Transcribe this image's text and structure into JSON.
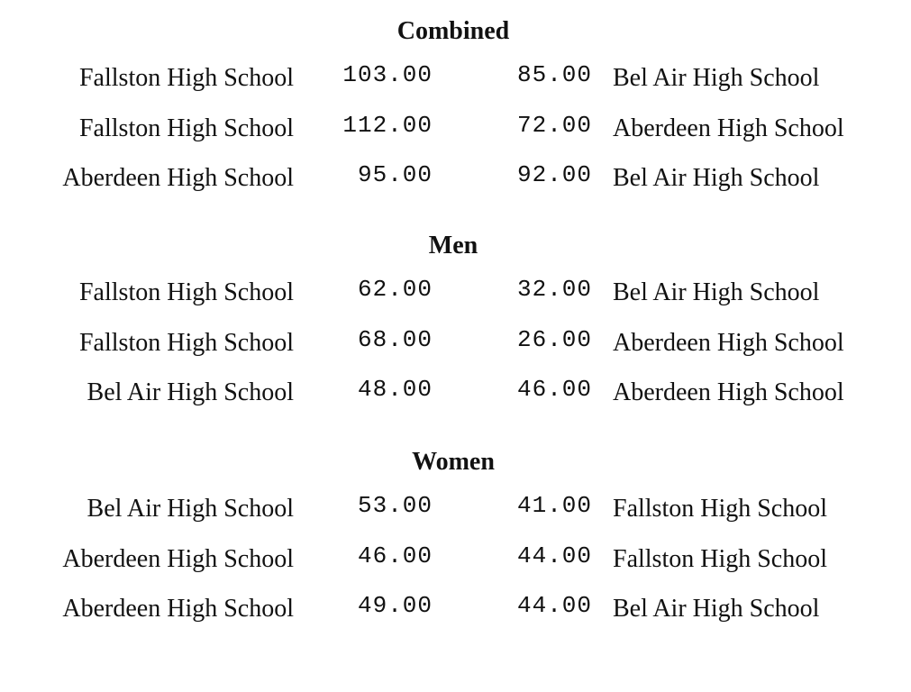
{
  "sections": [
    {
      "title": "Combined",
      "rows": [
        [
          "Fallston High School",
          "103.00",
          "85.00",
          "Bel Air High School"
        ],
        [
          "Fallston High School",
          "112.00",
          "72.00",
          "Aberdeen High School"
        ],
        [
          "Aberdeen High School",
          "95.00",
          "92.00",
          "Bel Air High School"
        ]
      ]
    },
    {
      "title": "Men",
      "rows": [
        [
          "Fallston High School",
          "62.00",
          "32.00",
          "Bel Air High School"
        ],
        [
          "Fallston High School",
          "68.00",
          "26.00",
          "Aberdeen High School"
        ],
        [
          "Bel Air High School",
          "48.00",
          "46.00",
          "Aberdeen High School"
        ]
      ]
    },
    {
      "title": "Women",
      "rows": [
        [
          "Bel Air High School",
          "53.00",
          "41.00",
          "Fallston High School"
        ],
        [
          "Aberdeen High School",
          "46.00",
          "44.00",
          "Fallston High School"
        ],
        [
          "Aberdeen High School",
          "49.00",
          "44.00",
          "Bel Air High School"
        ]
      ]
    }
  ]
}
